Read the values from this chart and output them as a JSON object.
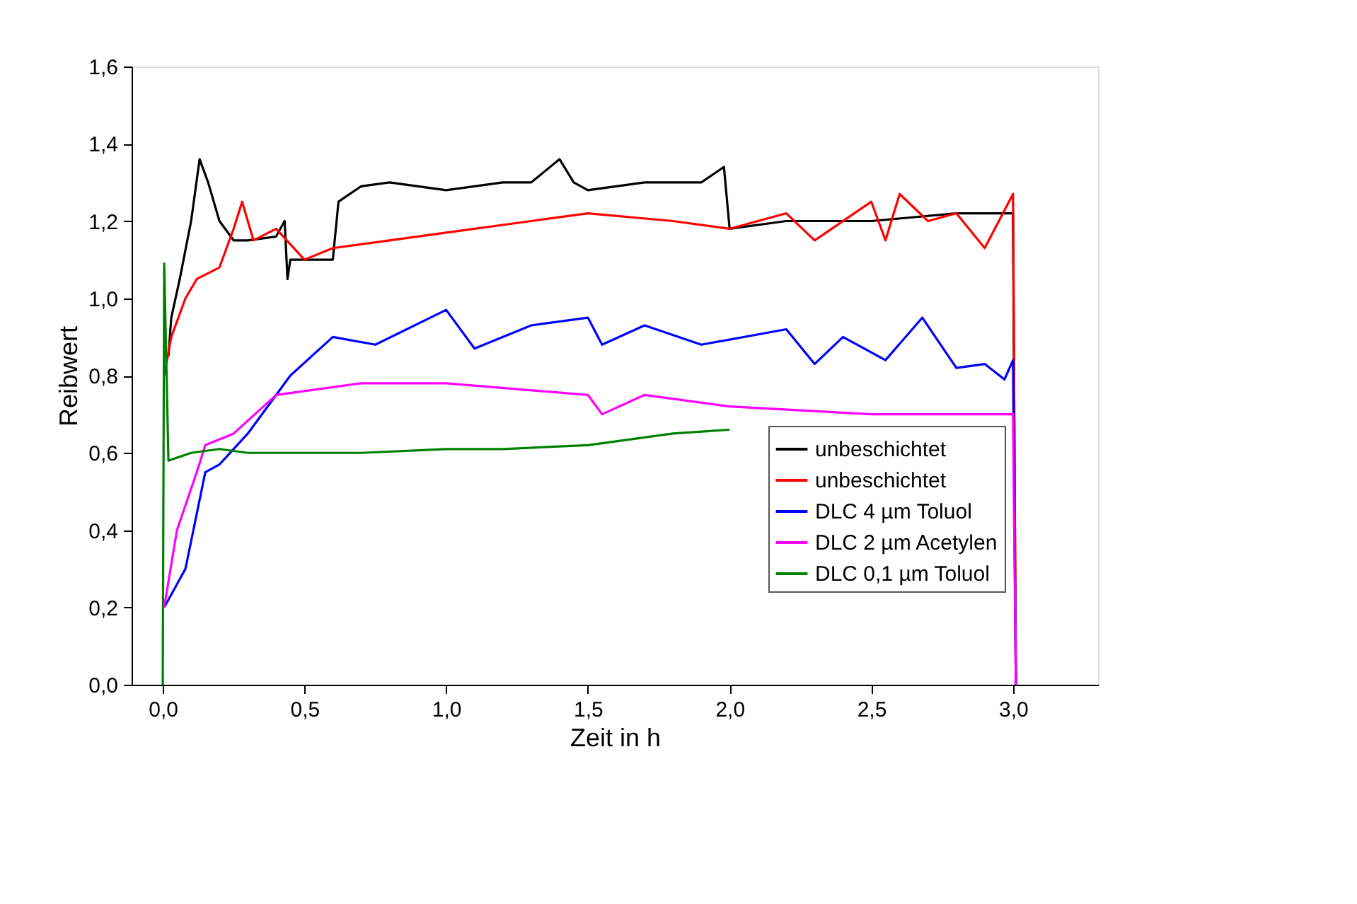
{
  "chart_data": {
    "type": "line",
    "xlabel": "Zeit in h",
    "ylabel": "Reibwert",
    "xlim": [
      -0.11,
      3.3
    ],
    "ylim": [
      0,
      1.6
    ],
    "xticks": [
      {
        "value": 0,
        "label": "0,0"
      },
      {
        "value": 0.5,
        "label": "0,5"
      },
      {
        "value": 1,
        "label": "1,0"
      },
      {
        "value": 1.5,
        "label": "1,5"
      },
      {
        "value": 2,
        "label": "2,0"
      },
      {
        "value": 2.5,
        "label": "2,5"
      },
      {
        "value": 3,
        "label": "3,0"
      }
    ],
    "yticks": [
      {
        "value": 0,
        "label": "0,0"
      },
      {
        "value": 0.2,
        "label": "0,2"
      },
      {
        "value": 0.4,
        "label": "0,4"
      },
      {
        "value": 0.6,
        "label": "0,6"
      },
      {
        "value": 0.8,
        "label": "0,8"
      },
      {
        "value": 1,
        "label": "1,0"
      },
      {
        "value": 1.2,
        "label": "1,2"
      },
      {
        "value": 1.4,
        "label": "1,4"
      },
      {
        "value": 1.6,
        "label": "1,6"
      }
    ],
    "grid": false,
    "legend": "bottom right",
    "line_style": "solid",
    "marker": "none",
    "series": [
      {
        "name": "unbeschichtet",
        "color": "#000000",
        "x": [
          0.02,
          0.03,
          0.06,
          0.1,
          0.13,
          0.16,
          0.2,
          0.25,
          0.3,
          0.4,
          0.43,
          0.44,
          0.45,
          0.5,
          0.6,
          0.62,
          0.7,
          0.8,
          1.0,
          1.2,
          1.3,
          1.4,
          1.45,
          1.5,
          1.7,
          1.9,
          1.98,
          2.0,
          2.2,
          2.5,
          2.8,
          2.9,
          3.0,
          3.01
        ],
        "values": [
          0.85,
          0.95,
          1.05,
          1.2,
          1.36,
          1.3,
          1.2,
          1.15,
          1.15,
          1.16,
          1.2,
          1.05,
          1.1,
          1.1,
          1.1,
          1.25,
          1.29,
          1.3,
          1.28,
          1.3,
          1.3,
          1.36,
          1.3,
          1.28,
          1.3,
          1.3,
          1.34,
          1.18,
          1.2,
          1.2,
          1.22,
          1.22,
          1.22,
          0
        ]
      },
      {
        "name": "unbeschichtet",
        "color": "#ff0000",
        "x": [
          0.005,
          0.03,
          0.08,
          0.12,
          0.2,
          0.25,
          0.28,
          0.32,
          0.4,
          0.5,
          0.6,
          0.8,
          1.0,
          1.3,
          1.5,
          1.8,
          2.0,
          2.2,
          2.3,
          2.5,
          2.55,
          2.6,
          2.7,
          2.8,
          2.9,
          3.0,
          3.01
        ],
        "values": [
          0.8,
          0.9,
          1.0,
          1.05,
          1.08,
          1.18,
          1.25,
          1.15,
          1.18,
          1.1,
          1.13,
          1.15,
          1.17,
          1.2,
          1.22,
          1.2,
          1.18,
          1.22,
          1.15,
          1.25,
          1.15,
          1.27,
          1.2,
          1.22,
          1.13,
          1.27,
          0
        ]
      },
      {
        "name": "DLC 4 µm Toluol",
        "color": "#0000ff",
        "x": [
          0.005,
          0.08,
          0.15,
          0.2,
          0.3,
          0.45,
          0.6,
          0.75,
          1.0,
          1.1,
          1.3,
          1.5,
          1.55,
          1.7,
          1.9,
          2.2,
          2.3,
          2.4,
          2.55,
          2.68,
          2.8,
          2.9,
          2.97,
          3.0,
          3.01
        ],
        "values": [
          0.2,
          0.3,
          0.55,
          0.57,
          0.65,
          0.8,
          0.9,
          0.88,
          0.97,
          0.87,
          0.93,
          0.95,
          0.88,
          0.93,
          0.88,
          0.92,
          0.83,
          0.9,
          0.84,
          0.95,
          0.82,
          0.83,
          0.79,
          0.84,
          0
        ]
      },
      {
        "name": "DLC 2 µm Acetylen",
        "color": "#ff00ff",
        "x": [
          0.005,
          0.05,
          0.12,
          0.15,
          0.25,
          0.4,
          0.7,
          1.0,
          1.5,
          1.55,
          1.7,
          2.0,
          2.5,
          3.0,
          3.01
        ],
        "values": [
          0.2,
          0.4,
          0.55,
          0.62,
          0.65,
          0.75,
          0.78,
          0.78,
          0.75,
          0.7,
          0.75,
          0.72,
          0.7,
          0.7,
          0
        ]
      },
      {
        "name": "DLC 0,1 µm Toluol",
        "color": "#008000",
        "x": [
          0.0,
          0.005,
          0.02,
          0.1,
          0.2,
          0.3,
          0.7,
          1.0,
          1.2,
          1.5,
          1.8,
          2.0
        ],
        "values": [
          0,
          1.09,
          0.58,
          0.6,
          0.61,
          0.6,
          0.6,
          0.61,
          0.61,
          0.62,
          0.65,
          0.66
        ]
      }
    ]
  }
}
